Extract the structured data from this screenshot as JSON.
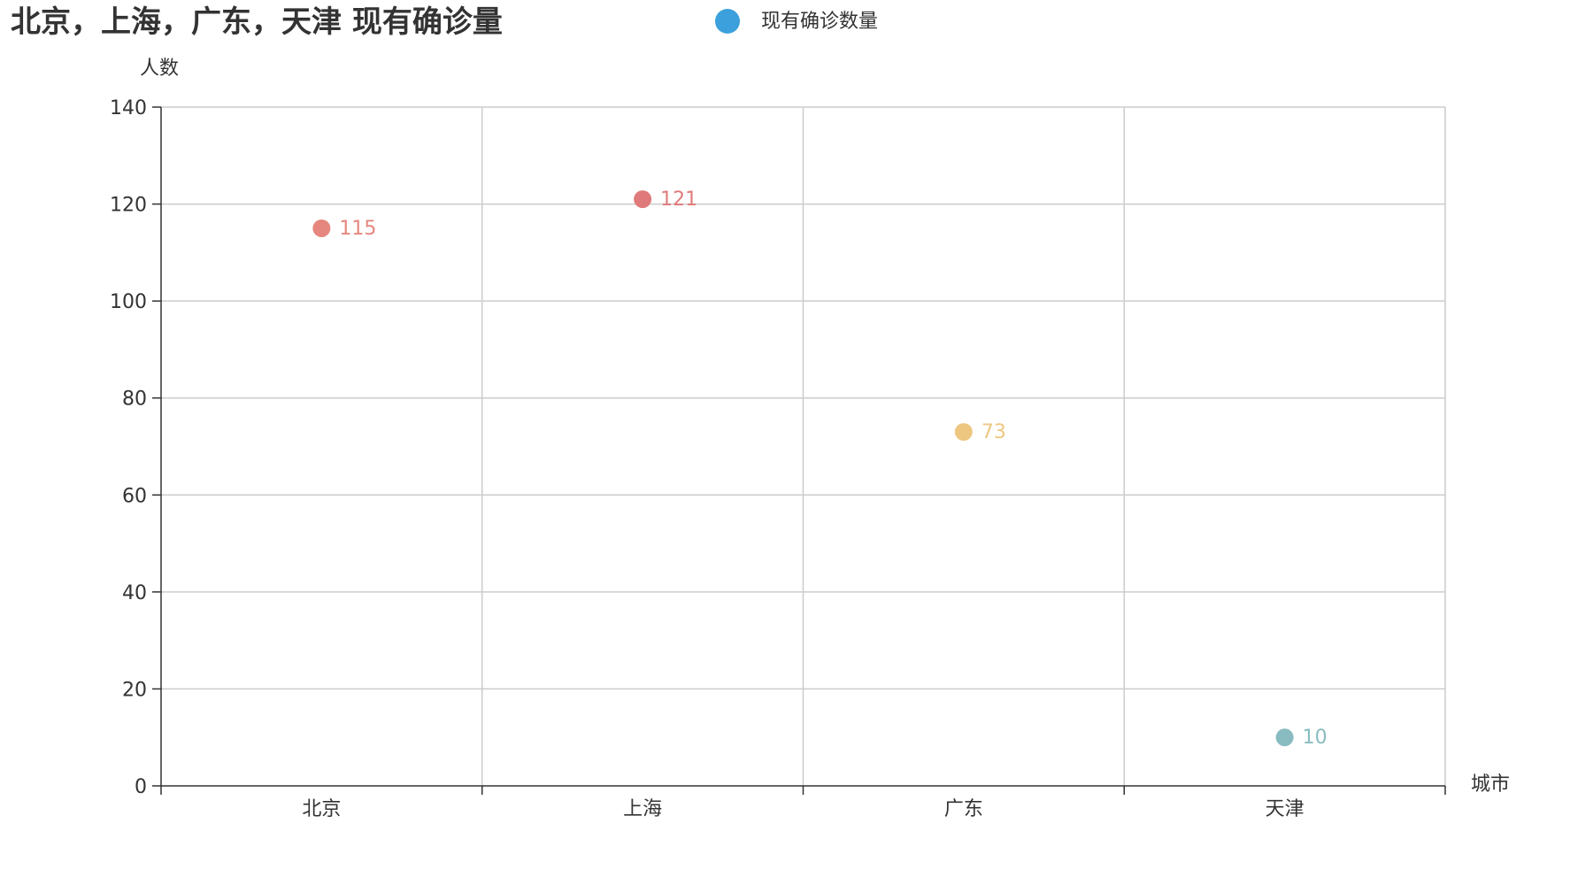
{
  "chart_data": {
    "type": "scatter",
    "title": "北京，上海，广东，天津 现有确诊量",
    "legend": {
      "position": "top-center",
      "entries": [
        {
          "name": "现有确诊数量",
          "color": "#3ba0dc"
        }
      ]
    },
    "xlabel": "城市",
    "ylabel": "人数",
    "categories": [
      "北京",
      "上海",
      "广东",
      "天津"
    ],
    "ylim": [
      0,
      140
    ],
    "yticks": [
      0,
      20,
      40,
      60,
      80,
      100,
      120,
      140
    ],
    "grid": true,
    "series": [
      {
        "name": "现有确诊数量",
        "values": [
          115,
          121,
          73,
          10
        ],
        "point_colors": [
          "#e5877e",
          "#e07a7a",
          "#edc780",
          "#88bcc0"
        ]
      }
    ]
  },
  "colors": {
    "text": "#333333",
    "grid": "#cccccc",
    "axis": "#333333"
  }
}
